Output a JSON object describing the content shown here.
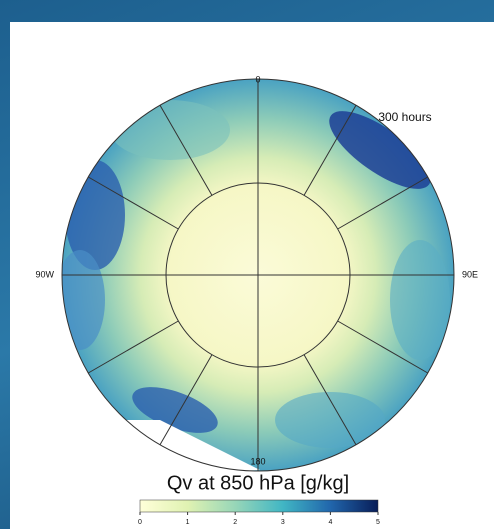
{
  "map": {
    "labels": {
      "top": "0",
      "right": "90E",
      "bottom": "180",
      "left": "90W"
    },
    "annotation": "300 hours",
    "title": "Qv at 850 hPa [g/kg]",
    "colorbar": {
      "lim": [
        0,
        5
      ],
      "ticks": [
        0,
        1,
        2,
        3,
        4,
        5
      ]
    }
  }
}
